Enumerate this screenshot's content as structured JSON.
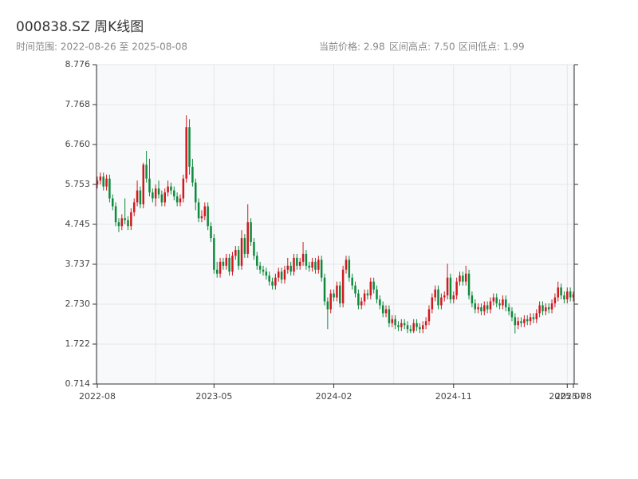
{
  "chart_data": {
    "type": "candlestick",
    "title": "000838.SZ 周K线图",
    "subtitle": "时间范围: 2022-08-26 至 2025-08-08",
    "info": [
      "当前价格: 2.98",
      "区间高点: 7.50",
      "区间低点: 1.99"
    ],
    "up_color": "#d0191f",
    "down_color": "#0f8a3c",
    "grid": true,
    "ylim": [
      0.714,
      8.776
    ],
    "yticks": [
      0.714,
      1.722,
      {
        "value": 2.73,
        "label": "2.730"
      },
      3.737,
      4.745,
      5.753,
      {
        "value": 6.76,
        "label": "6.760"
      },
      7.768,
      8.776
    ],
    "categories": [
      "2022-08",
      null,
      null,
      null,
      null,
      null,
      null,
      null,
      null,
      null,
      null,
      null,
      null,
      null,
      null,
      null,
      null,
      null,
      null,
      null,
      null,
      null,
      null,
      null,
      null,
      null,
      null,
      null,
      null,
      null,
      null,
      null,
      null,
      null,
      null,
      null,
      null,
      null,
      "2023-05",
      null,
      null,
      null,
      null,
      null,
      null,
      null,
      null,
      null,
      null,
      null,
      null,
      null,
      null,
      null,
      null,
      null,
      null,
      null,
      null,
      null,
      null,
      null,
      null,
      null,
      null,
      null,
      null,
      null,
      null,
      null,
      null,
      null,
      null,
      null,
      null,
      null,
      null,
      "2024-02",
      null,
      null,
      null,
      null,
      null,
      null,
      null,
      null,
      null,
      null,
      null,
      null,
      null,
      null,
      null,
      null,
      null,
      null,
      null,
      null,
      null,
      null,
      null,
      null,
      null,
      null,
      null,
      null,
      null,
      null,
      null,
      null,
      null,
      null,
      null,
      null,
      null,
      null,
      "2024-11",
      null,
      null,
      null,
      null,
      null,
      null,
      null,
      null,
      null,
      null,
      null,
      null,
      null,
      null,
      null,
      null,
      null,
      null,
      null,
      null,
      null,
      null,
      null,
      null,
      null,
      null,
      null,
      null,
      null,
      null,
      null,
      null,
      null,
      null,
      null,
      null,
      "2025-07",
      null,
      "2025-08"
    ],
    "open": [
      5.75,
      5.85,
      5.95,
      5.7,
      5.9,
      5.4,
      5.2,
      4.8,
      4.7,
      4.9,
      4.85,
      4.7,
      5.05,
      5.3,
      5.6,
      5.25,
      6.25,
      5.9,
      5.55,
      5.4,
      5.65,
      5.5,
      5.3,
      5.55,
      5.7,
      5.6,
      5.45,
      5.3,
      5.4,
      5.9,
      7.2,
      6.2,
      5.8,
      5.3,
      4.9,
      4.95,
      5.2,
      4.7,
      4.4,
      3.6,
      3.5,
      3.8,
      3.7,
      3.9,
      3.55,
      3.95,
      4.1,
      3.7,
      4.4,
      4.0,
      4.8,
      4.3,
      3.95,
      3.7,
      3.6,
      3.55,
      3.45,
      3.3,
      3.2,
      3.4,
      3.55,
      3.35,
      3.6,
      3.7,
      3.55,
      3.9,
      3.7,
      3.8,
      4.0,
      3.7,
      3.65,
      3.8,
      3.6,
      3.85,
      3.4,
      2.8,
      2.6,
      3.0,
      2.9,
      3.2,
      2.75,
      3.6,
      3.85,
      3.4,
      3.2,
      3.0,
      2.7,
      2.8,
      3.0,
      2.95,
      3.3,
      3.1,
      2.85,
      2.7,
      2.5,
      2.6,
      2.25,
      2.35,
      2.2,
      2.15,
      2.25,
      2.2,
      2.1,
      2.05,
      2.25,
      2.15,
      2.1,
      2.2,
      2.3,
      2.6,
      2.9,
      3.1,
      2.7,
      2.9,
      2.95,
      3.4,
      2.85,
      2.95,
      3.3,
      3.45,
      3.3,
      3.5,
      2.95,
      2.75,
      2.6,
      2.65,
      2.55,
      2.7,
      2.6,
      2.8,
      2.9,
      2.75,
      2.7,
      2.85,
      2.65,
      2.55,
      2.4,
      2.2,
      2.3,
      2.25,
      2.35,
      2.3,
      2.4,
      2.35,
      2.5,
      2.7,
      2.55,
      2.65,
      2.6,
      2.75,
      2.9,
      3.15,
      2.95,
      2.85,
      3.05,
      2.9
    ],
    "high": [
      5.95,
      6.05,
      6.05,
      6.0,
      6.0,
      5.5,
      5.3,
      4.9,
      5.0,
      5.4,
      4.95,
      5.15,
      5.4,
      5.85,
      5.7,
      6.3,
      6.6,
      6.4,
      5.65,
      5.75,
      5.85,
      5.6,
      5.65,
      5.85,
      5.8,
      5.7,
      5.55,
      5.5,
      6.0,
      7.5,
      7.4,
      6.4,
      5.9,
      5.4,
      5.1,
      5.3,
      5.3,
      4.8,
      4.5,
      3.8,
      3.9,
      3.9,
      4.0,
      4.0,
      4.05,
      4.2,
      4.2,
      4.6,
      4.5,
      5.25,
      4.9,
      4.4,
      4.05,
      3.8,
      3.7,
      3.65,
      3.55,
      3.4,
      3.5,
      3.65,
      3.65,
      3.7,
      3.9,
      3.8,
      4.0,
      4.0,
      3.9,
      4.3,
      4.1,
      3.8,
      3.9,
      3.9,
      3.95,
      3.95,
      3.5,
      2.9,
      3.1,
      3.1,
      3.3,
      3.3,
      3.7,
      3.95,
      3.95,
      3.5,
      3.3,
      3.1,
      2.9,
      3.1,
      3.1,
      3.4,
      3.4,
      3.2,
      2.95,
      2.8,
      2.7,
      2.7,
      2.45,
      2.45,
      2.3,
      2.35,
      2.35,
      2.3,
      2.2,
      2.35,
      2.35,
      2.25,
      2.3,
      2.4,
      2.7,
      3.0,
      3.2,
      3.2,
      3.0,
      3.05,
      3.75,
      3.5,
      3.05,
      3.4,
      3.55,
      3.55,
      3.7,
      3.6,
      3.05,
      2.85,
      2.75,
      2.75,
      2.8,
      2.8,
      2.9,
      3.0,
      3.0,
      2.85,
      2.95,
      2.95,
      2.75,
      2.65,
      2.5,
      2.4,
      2.4,
      2.45,
      2.45,
      2.5,
      2.5,
      2.6,
      2.8,
      2.8,
      2.75,
      2.75,
      2.85,
      3.0,
      3.3,
      3.25,
      3.05,
      3.15,
      3.15,
      3.05
    ],
    "low": [
      5.65,
      5.75,
      5.6,
      5.6,
      5.3,
      5.1,
      4.7,
      4.55,
      4.6,
      4.75,
      4.6,
      4.6,
      4.95,
      5.2,
      5.15,
      5.15,
      5.8,
      5.45,
      5.3,
      5.2,
      5.4,
      5.2,
      5.2,
      5.45,
      5.5,
      5.35,
      5.2,
      5.2,
      5.3,
      5.8,
      6.0,
      5.7,
      5.1,
      4.8,
      4.8,
      4.85,
      4.6,
      4.3,
      3.5,
      3.4,
      3.4,
      3.6,
      3.6,
      3.45,
      3.45,
      3.85,
      3.6,
      3.6,
      3.9,
      3.9,
      4.2,
      3.85,
      3.6,
      3.5,
      3.45,
      3.35,
      3.2,
      3.1,
      3.1,
      3.3,
      3.25,
      3.25,
      3.5,
      3.45,
      3.45,
      3.6,
      3.6,
      3.7,
      3.6,
      3.55,
      3.55,
      3.5,
      3.5,
      3.3,
      2.7,
      2.1,
      2.5,
      2.8,
      2.8,
      2.65,
      2.65,
      3.5,
      3.3,
      3.1,
      2.9,
      2.6,
      2.6,
      2.7,
      2.85,
      2.85,
      3.0,
      2.75,
      2.6,
      2.4,
      2.4,
      2.15,
      2.15,
      2.1,
      2.05,
      2.05,
      2.1,
      2.0,
      2.0,
      2.0,
      2.05,
      2.0,
      2.0,
      2.1,
      2.2,
      2.5,
      2.8,
      2.6,
      2.6,
      2.8,
      2.85,
      2.75,
      2.75,
      2.85,
      3.2,
      3.2,
      3.2,
      2.85,
      2.65,
      2.5,
      2.5,
      2.45,
      2.45,
      2.5,
      2.5,
      2.7,
      2.65,
      2.6,
      2.6,
      2.55,
      2.45,
      2.3,
      1.99,
      2.1,
      2.15,
      2.15,
      2.2,
      2.2,
      2.25,
      2.25,
      2.4,
      2.45,
      2.45,
      2.5,
      2.5,
      2.65,
      2.8,
      2.85,
      2.75,
      2.75,
      2.8,
      2.8
    ],
    "close": [
      5.85,
      5.95,
      5.7,
      5.9,
      5.4,
      5.2,
      4.8,
      4.7,
      4.9,
      4.85,
      4.7,
      5.05,
      5.3,
      5.6,
      5.25,
      6.25,
      5.9,
      5.55,
      5.4,
      5.65,
      5.5,
      5.3,
      5.55,
      5.7,
      5.6,
      5.45,
      5.3,
      5.4,
      5.9,
      7.2,
      6.2,
      5.8,
      5.3,
      4.9,
      4.95,
      5.2,
      4.7,
      4.4,
      3.6,
      3.5,
      3.8,
      3.7,
      3.9,
      3.55,
      3.95,
      4.1,
      3.7,
      4.4,
      4.0,
      4.8,
      4.3,
      3.95,
      3.7,
      3.6,
      3.55,
      3.45,
      3.3,
      3.2,
      3.4,
      3.55,
      3.35,
      3.6,
      3.7,
      3.55,
      3.9,
      3.7,
      3.8,
      4.0,
      3.7,
      3.65,
      3.8,
      3.6,
      3.85,
      3.4,
      2.8,
      2.6,
      3.0,
      2.9,
      3.2,
      2.75,
      3.6,
      3.85,
      3.4,
      3.2,
      3.0,
      2.7,
      2.8,
      3.0,
      2.95,
      3.3,
      3.1,
      2.85,
      2.7,
      2.5,
      2.6,
      2.25,
      2.35,
      2.2,
      2.15,
      2.25,
      2.2,
      2.1,
      2.05,
      2.25,
      2.15,
      2.1,
      2.2,
      2.3,
      2.6,
      2.9,
      3.1,
      2.7,
      2.9,
      2.95,
      3.4,
      2.85,
      2.95,
      3.3,
      3.45,
      3.3,
      3.5,
      2.95,
      2.75,
      2.6,
      2.65,
      2.55,
      2.7,
      2.6,
      2.8,
      2.9,
      2.75,
      2.7,
      2.85,
      2.65,
      2.55,
      2.4,
      2.2,
      2.3,
      2.25,
      2.35,
      2.3,
      2.4,
      2.35,
      2.5,
      2.7,
      2.55,
      2.65,
      2.6,
      2.75,
      2.9,
      3.15,
      2.95,
      2.85,
      3.05,
      2.9,
      2.98
    ]
  }
}
